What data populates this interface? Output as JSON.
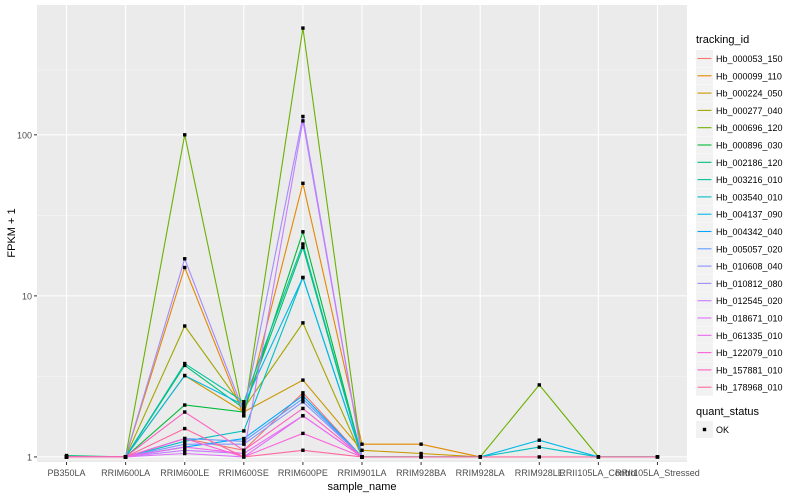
{
  "chart_data": {
    "type": "line",
    "xlabel": "sample_name",
    "ylabel": "FPKM + 1",
    "y_scale": "log10",
    "ylim": [
      0.93,
      640
    ],
    "y_ticks": [
      1,
      10,
      100
    ],
    "y_tick_labels": [
      "1",
      "10",
      "100"
    ],
    "categories": [
      "PB350LA",
      "RRIM600LA",
      "RRIM600LE",
      "RRIM600SE",
      "RRIM600PE",
      "RRIM901LA",
      "RRIM928BA",
      "RRIM928LA",
      "RRIM928LE",
      "RRII105LA_Control",
      "RRII105LA_Stressed"
    ],
    "legend_title": "tracking_id",
    "legend_position": "right",
    "grid": true,
    "series": [
      {
        "name": "Hb_000053_150",
        "color": "#F8766D",
        "values": [
          1.0,
          1.0,
          1.3,
          1.1,
          2.5,
          1.0,
          null,
          null,
          null,
          null,
          null
        ]
      },
      {
        "name": "Hb_000099_110",
        "color": "#E58700",
        "values": [
          1.0,
          1.0,
          15,
          1.8,
          50,
          1.2,
          1.2,
          1.0,
          null,
          null,
          null
        ]
      },
      {
        "name": "Hb_000224_050",
        "color": "#C99800",
        "values": [
          1.0,
          1.0,
          3.2,
          1.9,
          3.0,
          1.1,
          1.05,
          1.0,
          null,
          null,
          null
        ]
      },
      {
        "name": "Hb_000277_040",
        "color": "#A3A500",
        "values": [
          1.0,
          1.0,
          6.5,
          2.0,
          6.8,
          1.0,
          null,
          null,
          null,
          null,
          null
        ]
      },
      {
        "name": "Hb_000696_120",
        "color": "#6BB100",
        "values": [
          1.0,
          1.0,
          100,
          1.8,
          460,
          1.0,
          1.0,
          1.0,
          2.8,
          1.0,
          1.0
        ]
      },
      {
        "name": "Hb_000896_030",
        "color": "#00BA38",
        "values": [
          1.0,
          1.0,
          2.1,
          1.9,
          25,
          1.0,
          null,
          null,
          null,
          null,
          null
        ]
      },
      {
        "name": "Hb_002186_120",
        "color": "#00BF74",
        "values": [
          1.02,
          1.0,
          3.7,
          2.0,
          20,
          1.0,
          null,
          null,
          null,
          null,
          null
        ]
      },
      {
        "name": "Hb_003216_010",
        "color": "#00C19F",
        "values": [
          1.0,
          1.0,
          3.8,
          2.2,
          21,
          1.0,
          null,
          null,
          null,
          null,
          null
        ]
      },
      {
        "name": "Hb_003540_010",
        "color": "#00BFC4",
        "values": [
          1.0,
          1.0,
          1.25,
          1.45,
          13,
          1.0,
          1.0,
          1.0,
          1.15,
          1.0,
          1.0
        ]
      },
      {
        "name": "Hb_004137_090",
        "color": "#00B8E7",
        "values": [
          1.0,
          1.0,
          3.2,
          2.1,
          13,
          1.0,
          1.0,
          1.0,
          1.27,
          1.0,
          1.0
        ]
      },
      {
        "name": "Hb_004342_040",
        "color": "#00A9FF",
        "values": [
          1.0,
          1.0,
          1.15,
          1.3,
          2.4,
          1.0,
          null,
          null,
          null,
          null,
          null
        ]
      },
      {
        "name": "Hb_005057_020",
        "color": "#619CFF",
        "values": [
          1.0,
          1.0,
          1.3,
          1.25,
          2.3,
          1.0,
          null,
          null,
          null,
          null,
          null
        ]
      },
      {
        "name": "Hb_010608_040",
        "color": "#8494FF",
        "values": [
          1.0,
          1.0,
          1.2,
          1.2,
          2.2,
          1.0,
          null,
          null,
          null,
          null,
          null
        ]
      },
      {
        "name": "Hb_010812_080",
        "color": "#A58AFF",
        "values": [
          1.0,
          1.0,
          17,
          1.9,
          130,
          1.0,
          null,
          null,
          null,
          null,
          null
        ]
      },
      {
        "name": "Hb_012545_020",
        "color": "#C77CFF",
        "values": [
          1.0,
          1.0,
          1.1,
          1.05,
          122,
          1.0,
          null,
          null,
          null,
          null,
          null
        ]
      },
      {
        "name": "Hb_018671_010",
        "color": "#DB72FB",
        "values": [
          1.0,
          1.0,
          1.05,
          1.0,
          1.8,
          1.0,
          null,
          null,
          null,
          null,
          null
        ]
      },
      {
        "name": "Hb_061335_010",
        "color": "#ED68ED",
        "values": [
          1.0,
          1.0,
          1.15,
          1.05,
          1.8,
          1.0,
          null,
          null,
          null,
          null,
          null
        ]
      },
      {
        "name": "Hb_122079_010",
        "color": "#FA62DB",
        "values": [
          1.0,
          1.0,
          1.3,
          1.0,
          1.4,
          1.0,
          null,
          null,
          null,
          null,
          null
        ]
      },
      {
        "name": "Hb_157881_010",
        "color": "#FF61C3",
        "values": [
          1.0,
          1.0,
          1.9,
          1.1,
          2.0,
          1.0,
          null,
          null,
          null,
          null,
          null
        ]
      },
      {
        "name": "Hb_178968_010",
        "color": "#FF68A1",
        "values": [
          1.0,
          1.0,
          1.5,
          1.0,
          1.1,
          1.0,
          1.0,
          1.0,
          1.0,
          1.0,
          1.0
        ]
      }
    ],
    "shape_legend": {
      "title": "quant_status",
      "entries": [
        "OK"
      ]
    }
  }
}
